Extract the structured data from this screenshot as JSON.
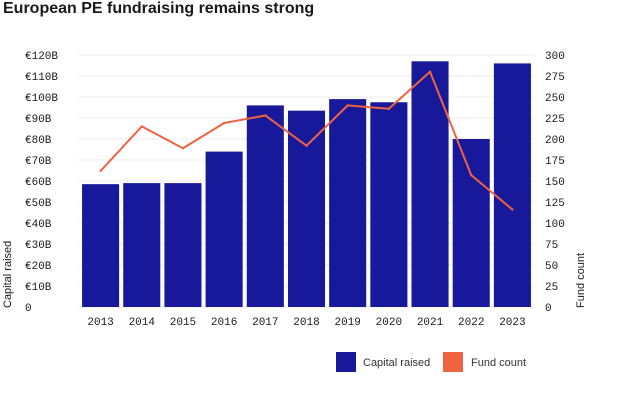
{
  "chart_data": {
    "type": "bar",
    "title": "European PE fundraising remains strong",
    "categories": [
      "2013",
      "2014",
      "2015",
      "2016",
      "2017",
      "2018",
      "2019",
      "2020",
      "2021",
      "2022",
      "2023"
    ],
    "series": [
      {
        "name": "Capital raised",
        "type": "bar",
        "axis": "left",
        "color": "#18199a",
        "values": [
          58.5,
          59,
          59,
          74,
          96,
          93.5,
          99,
          97.5,
          117,
          80,
          116
        ]
      },
      {
        "name": "Fund count",
        "type": "line",
        "axis": "right",
        "color": "#ef6340",
        "values": [
          162,
          215,
          189,
          219,
          228,
          192,
          240,
          236,
          280,
          157,
          116
        ]
      }
    ],
    "y_left": {
      "label": "Capital raised",
      "range": [
        0,
        120
      ],
      "ticks": [
        "0",
        "€10B",
        "€20B",
        "€30B",
        "€40B",
        "€50B",
        "€60B",
        "€70B",
        "€80B",
        "€90B",
        "€100B",
        "€110B",
        "€120B"
      ]
    },
    "y_right": {
      "label": "Fund count",
      "range": [
        0,
        300
      ],
      "ticks": [
        "0",
        "25",
        "50",
        "75",
        "100",
        "125",
        "150",
        "175",
        "200",
        "225",
        "250",
        "275",
        "300"
      ]
    },
    "grid": true,
    "legend_position": "bottom-right"
  }
}
